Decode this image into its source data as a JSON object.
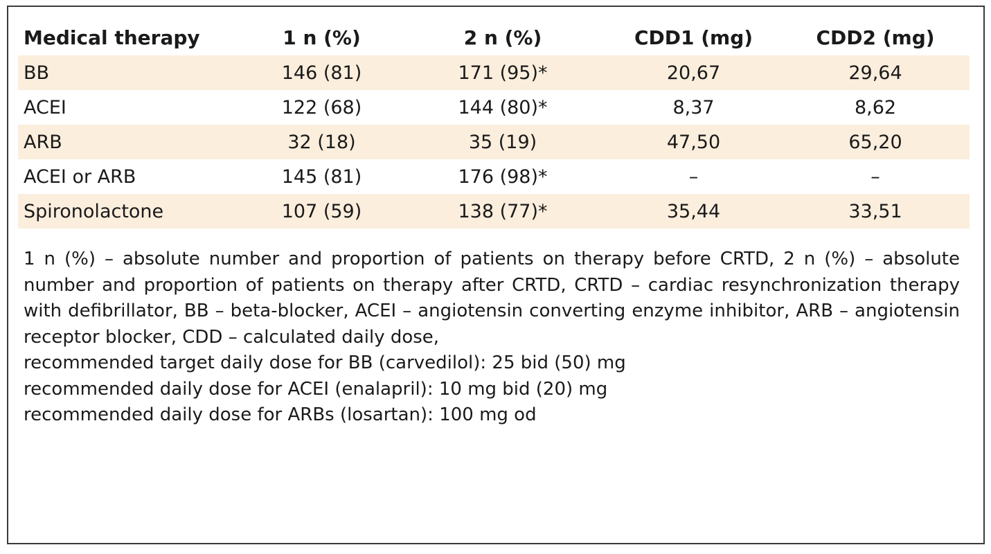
{
  "table": {
    "headers": [
      "Medical therapy",
      "1 n (%)",
      "2 n (%)",
      "CDD1 (mg)",
      "CDD2 (mg)"
    ],
    "rows": [
      {
        "therapy": "BB",
        "n1": "146 (81)",
        "n2": "171 (95)*",
        "cdd1": "20,67",
        "cdd2": "29,64"
      },
      {
        "therapy": "ACEI",
        "n1": "122 (68)",
        "n2": "144 (80)*",
        "cdd1": "8,37",
        "cdd2": "8,62"
      },
      {
        "therapy": "ARB",
        "n1": "32 (18)",
        "n2": "35 (19)",
        "cdd1": "47,50",
        "cdd2": "65,20"
      },
      {
        "therapy": "ACEI or ARB",
        "n1": "145 (81)",
        "n2": "176 (98)*",
        "cdd1": "–",
        "cdd2": "–"
      },
      {
        "therapy": "Spironolactone",
        "n1": "107 (59)",
        "n2": "138 (77)*",
        "cdd1": "35,44",
        "cdd2": "33,51"
      }
    ],
    "row_shading_color": "#fbeedd"
  },
  "notes": {
    "abbreviations": "1 n (%) – absolute number and proportion of patients on therapy before CRTD, 2 n (%) – absolute number and proportion of patients on therapy after CRTD, CRTD – cardiac resynchronization therapy with defibrillator, BB – beta-blocker, ACEI – angiotensin converting enzyme inhibitor, ARB – angiotensin receptor blocker, CDD – calculated daily dose,",
    "bb_target": "recommended target daily dose for BB (carvedilol): 25 bid (50) mg",
    "acei_dose": "recommended daily dose for ACEI (enalapril): 10 mg bid (20) mg",
    "arb_dose": "recommended daily dose for ARBs (losartan): 100 mg od"
  }
}
